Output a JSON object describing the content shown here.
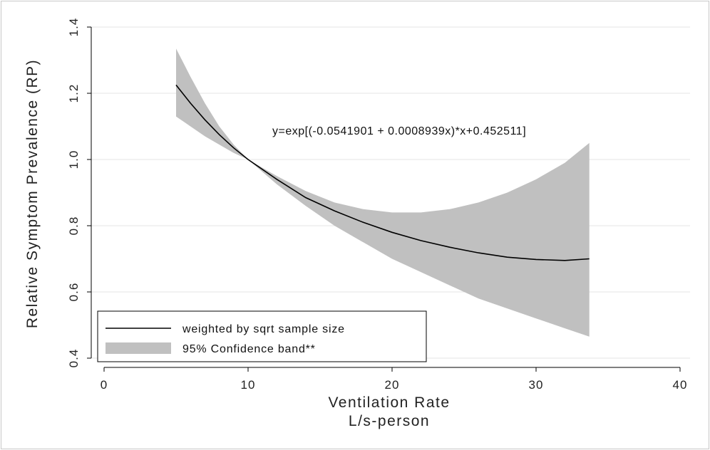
{
  "chart_data": {
    "type": "line",
    "title": "",
    "xlabel": "Ventilation Rate",
    "xlabel_line2": "L/s-person",
    "ylabel": "Relative Symptom Prevalence (RP)",
    "xlim": [
      0,
      40
    ],
    "ylim": [
      0.4,
      1.4
    ],
    "xticks": [
      0,
      10,
      20,
      30,
      40
    ],
    "yticks": [
      0.4,
      0.6,
      0.8,
      1.0,
      1.2,
      1.4
    ],
    "xtick_labels": [
      "0",
      "10",
      "20",
      "30",
      "40"
    ],
    "ytick_labels": [
      "0.4",
      "0.6",
      "0.8",
      "1.0",
      "1.2",
      "1.4"
    ],
    "grid": "horizontal",
    "annotation": "y=exp[(-0.0541901 + 0.0008939x)*x+0.452511]",
    "legend_position": "bottom-left",
    "series": [
      {
        "name": "weighted by sqrt sample size",
        "type": "line",
        "color": "#000000",
        "x": [
          5,
          6,
          7,
          8,
          9,
          10,
          12,
          14,
          16,
          18,
          20,
          22,
          24,
          26,
          28,
          30,
          32,
          33.7
        ],
        "y": [
          1.225,
          1.17,
          1.12,
          1.075,
          1.035,
          1.0,
          0.94,
          0.885,
          0.845,
          0.81,
          0.78,
          0.755,
          0.735,
          0.718,
          0.705,
          0.698,
          0.695,
          0.7
        ]
      },
      {
        "name": "95% Confidence band**",
        "type": "area",
        "color": "#c0c0c0",
        "x": [
          5,
          6,
          7,
          8,
          9,
          10,
          12,
          14,
          16,
          18,
          20,
          22,
          24,
          26,
          28,
          30,
          32,
          33.7
        ],
        "lower": [
          1.13,
          1.1,
          1.07,
          1.045,
          1.02,
          1.0,
          0.925,
          0.86,
          0.8,
          0.75,
          0.7,
          0.66,
          0.62,
          0.58,
          0.55,
          0.52,
          0.49,
          0.465
        ],
        "upper": [
          1.335,
          1.25,
          1.17,
          1.1,
          1.045,
          1.0,
          0.95,
          0.905,
          0.87,
          0.85,
          0.84,
          0.84,
          0.85,
          0.87,
          0.9,
          0.94,
          0.99,
          1.05
        ]
      }
    ]
  }
}
